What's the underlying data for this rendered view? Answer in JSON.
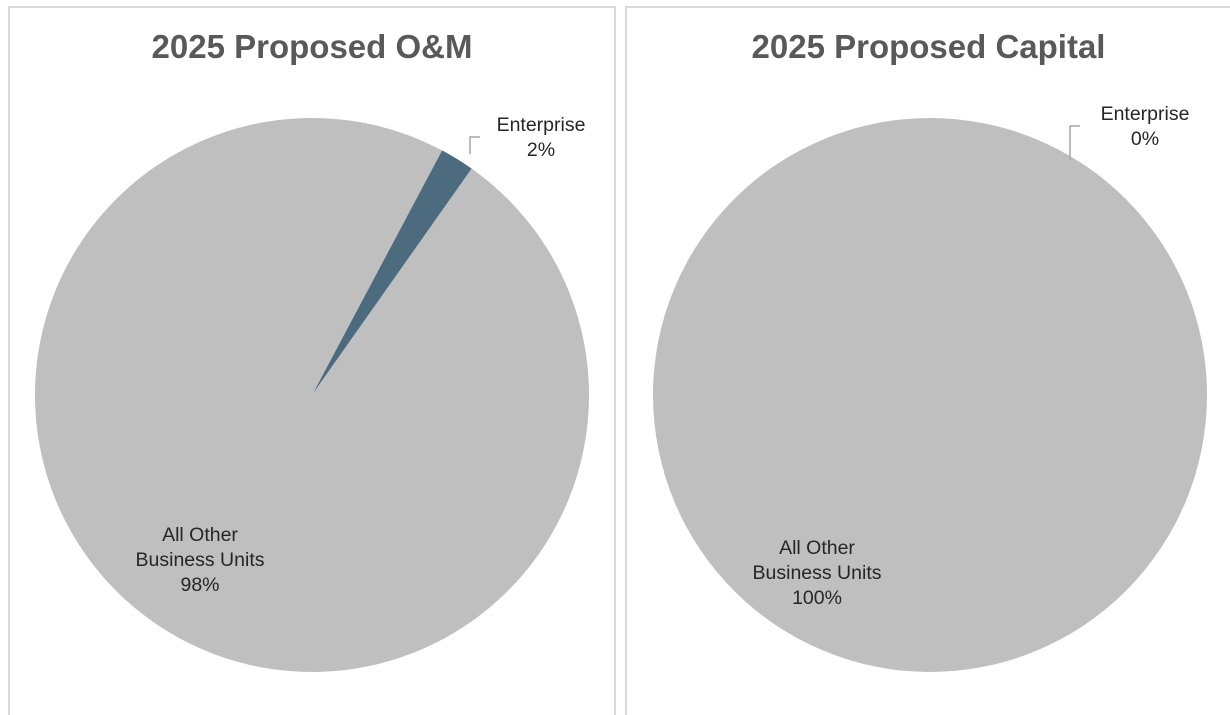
{
  "chart_data": [
    {
      "type": "pie",
      "title": "2025 Proposed O&M",
      "slices": [
        {
          "name": "Enterprise",
          "value": 2,
          "label_lines": [
            "Enterprise",
            "2%"
          ],
          "color": "#4d6b7f"
        },
        {
          "name": "All Other Business Units",
          "value": 98,
          "label_lines": [
            "All Other",
            "Business Units",
            "98%"
          ],
          "color": "#bfbfbf"
        }
      ]
    },
    {
      "type": "pie",
      "title": "2025 Proposed Capital",
      "slices": [
        {
          "name": "Enterprise",
          "value": 0,
          "label_lines": [
            "Enterprise",
            "0%"
          ],
          "color": "#4d6b7f"
        },
        {
          "name": "All Other Business Units",
          "value": 100,
          "label_lines": [
            "All Other",
            "Business Units",
            "100%"
          ],
          "color": "#bfbfbf"
        }
      ]
    }
  ],
  "colors": {
    "title": "#595959",
    "leader_line": "#a6a6a6",
    "panel_border": "#d9d9d9"
  }
}
